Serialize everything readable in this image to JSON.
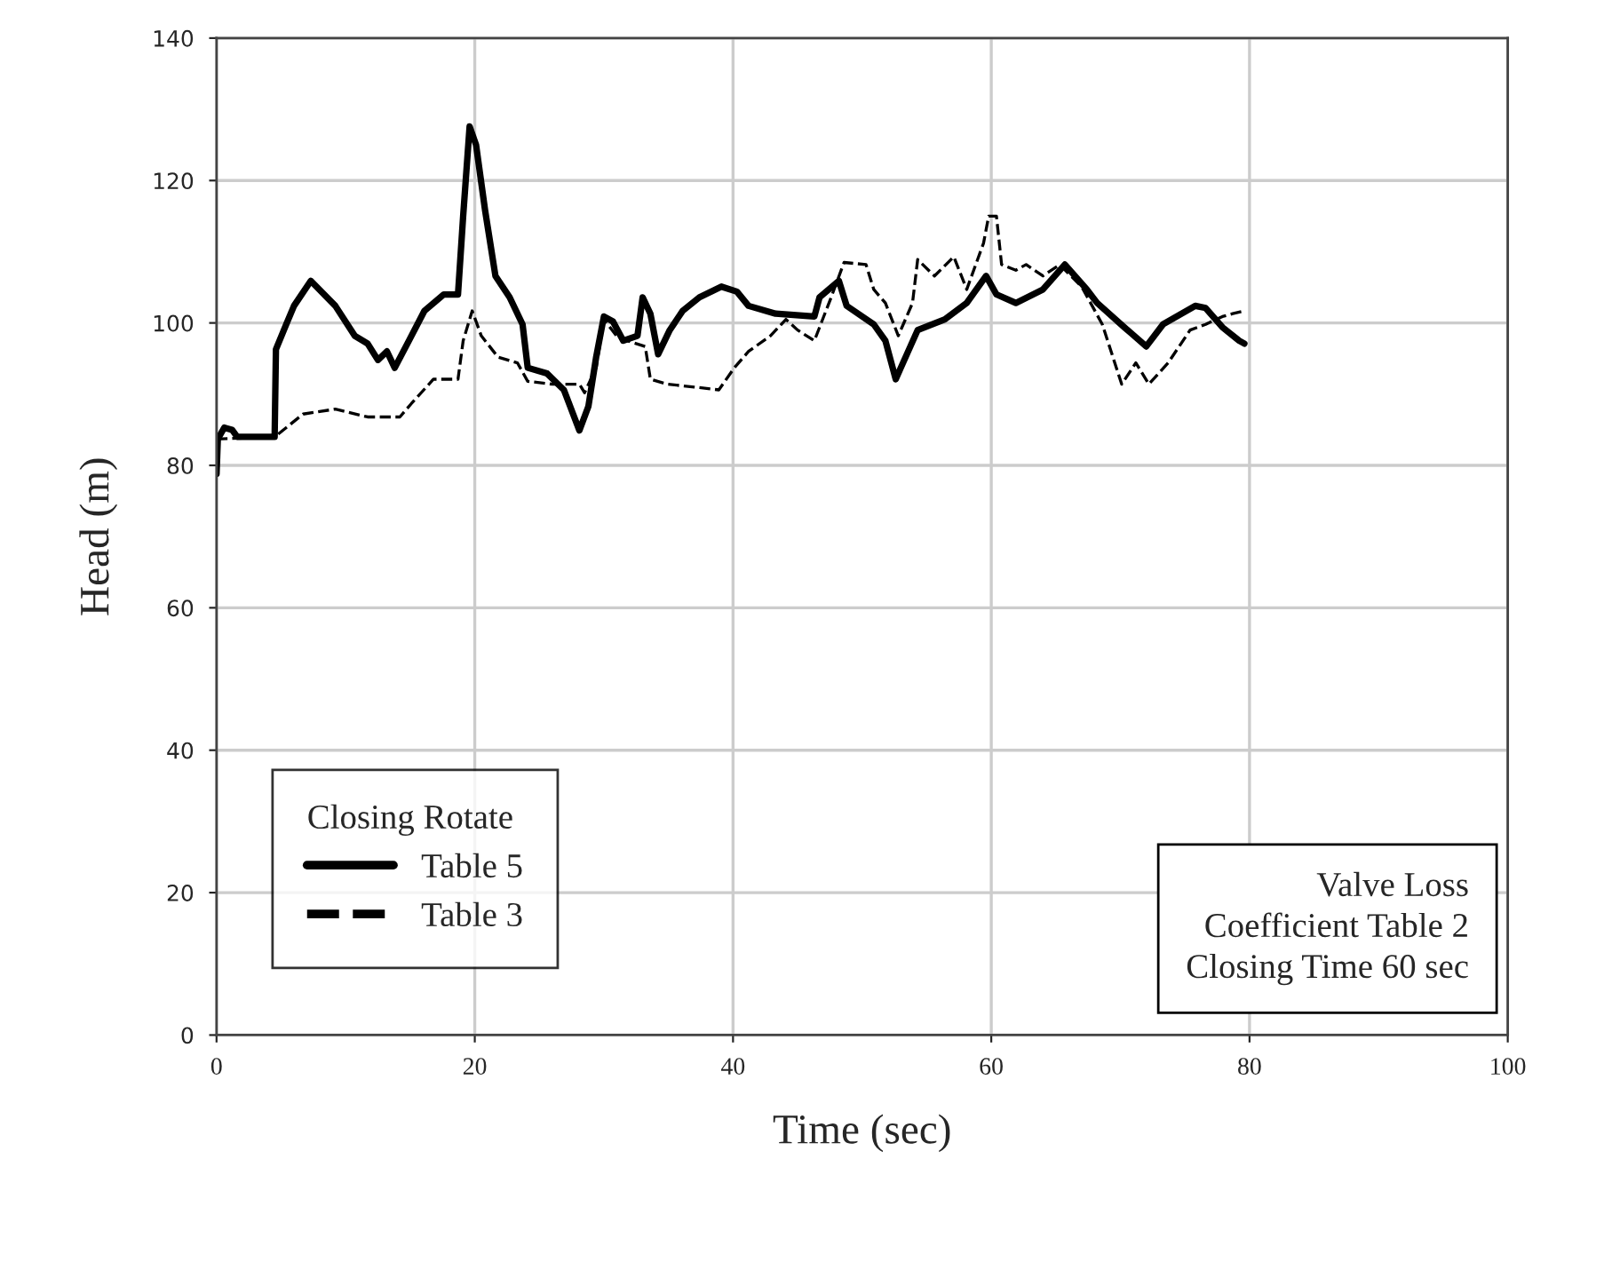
{
  "chart_data": {
    "type": "line",
    "xlabel": "Time (sec)",
    "ylabel": "Head (m)",
    "xlim": [
      0,
      100
    ],
    "ylim": [
      0,
      140
    ],
    "xticks": [
      0,
      20,
      40,
      60,
      80,
      100
    ],
    "yticks": [
      0,
      20,
      40,
      60,
      80,
      100,
      120,
      140
    ],
    "grid": true,
    "legend": "bottom left",
    "legend_title": "Closing Rotate",
    "annotations": [
      "Valve Loss\nCoefficient Table 2\nClosing Time 60 sec"
    ],
    "series": [
      {
        "name": "Table 5",
        "color": "#000000",
        "line_style": "solid",
        "x": [
          0,
          0.1,
          0.6,
          1.2,
          1.6,
          4.5,
          4.6,
          5.4,
          6,
          7.3,
          9.2,
          10.7,
          11.7,
          12.5,
          13.2,
          13.8,
          14.9,
          16.1,
          17.6,
          18.7,
          19.1,
          19.6,
          20.1,
          20.8,
          21.6,
          22.7,
          23.7,
          24.1,
          25.6,
          26.9,
          28.1,
          28.8,
          29.4,
          30.0,
          30.7,
          31.5,
          32.6,
          33,
          33.6,
          34.2,
          35.1,
          36.1,
          37.4,
          39.1,
          40.3,
          41.2,
          43.3,
          46.3,
          46.7,
          48.2,
          48.8,
          50.9,
          51.8,
          52.6,
          54.3,
          56.4,
          58.1,
          59.6,
          60.4,
          61.9,
          64,
          65.7,
          67.4,
          68.2,
          70.3,
          72,
          73.3,
          75.8,
          76.6,
          77.9,
          79.2,
          79.6
        ],
        "values": [
          78.8,
          83.7,
          85.3,
          85,
          84,
          84,
          96.3,
          99.8,
          102.4,
          105.9,
          102.4,
          98.2,
          97.1,
          94.8,
          96,
          93.7,
          97.5,
          101.7,
          104,
          104,
          115,
          127.6,
          125,
          115.8,
          106.6,
          103.6,
          99.8,
          93.7,
          92.9,
          90.6,
          84.9,
          88.3,
          95.2,
          100.9,
          100.2,
          97.5,
          98.2,
          103.6,
          101.3,
          95.6,
          99,
          101.7,
          103.6,
          105.1,
          104.4,
          102.4,
          101.3,
          100.9,
          103.6,
          105.9,
          102.4,
          99.8,
          97.5,
          92.1,
          99,
          100.5,
          102.8,
          106.6,
          104,
          102.8,
          104.7,
          108.2,
          104.7,
          102.8,
          99.4,
          96.7,
          99.8,
          102.4,
          102.1,
          99.4,
          97.5,
          97.1
        ]
      },
      {
        "name": "Table 3",
        "color": "#000000",
        "line_style": "dashed",
        "x": [
          0,
          4.5,
          5.4,
          6.7,
          9.2,
          11.7,
          14.2,
          15.1,
          16.8,
          18.7,
          19.1,
          19.8,
          20.5,
          21.8,
          23.3,
          24.1,
          26,
          28.1,
          28.5,
          29.4,
          30,
          31.1,
          33.2,
          33.6,
          34.9,
          37,
          38.9,
          40.1,
          41.2,
          42.9,
          44.1,
          45,
          46.3,
          47.6,
          48.6,
          50.3,
          50.9,
          51.8,
          52.8,
          53.9,
          54.3,
          55.6,
          57.1,
          58.1,
          59.4,
          59.8,
          60.4,
          60.8,
          61.9,
          62.7,
          64,
          65.3,
          67,
          68.6,
          70.1,
          71.2,
          72.2,
          73.7,
          75.4,
          76.6,
          77.9,
          78.7,
          79.6
        ],
        "values": [
          83.7,
          84,
          85.3,
          87.2,
          87.9,
          86.8,
          86.8,
          88.7,
          92.1,
          92.1,
          97.5,
          101.7,
          98.2,
          95.2,
          94.4,
          91.8,
          91.4,
          91.4,
          90.2,
          93.7,
          100.5,
          97.9,
          96.7,
          92.1,
          91.4,
          91,
          90.6,
          93.7,
          96,
          98.2,
          100.5,
          99,
          97.5,
          103.6,
          108.5,
          108.2,
          104.7,
          102.8,
          98.2,
          102.8,
          108.9,
          106.6,
          109.3,
          104.7,
          111.2,
          115,
          115,
          108.2,
          107.4,
          108.2,
          106.6,
          108.2,
          105.1,
          99.8,
          91.4,
          94.4,
          91.4,
          94.4,
          99,
          99.8,
          100.9,
          101.3,
          101.7
        ]
      }
    ]
  }
}
